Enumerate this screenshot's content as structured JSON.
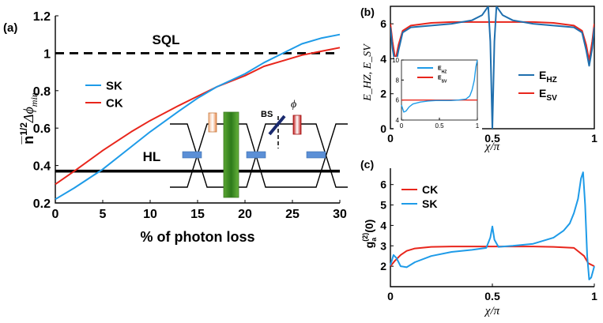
{
  "panel_a": {
    "label": "(a)",
    "ylabel_main": "n̅",
    "ylabel_sup": "1/2",
    "ylabel_tail": "Δϕ",
    "ylabel_sub": "min",
    "sql_label": "SQL",
    "hl_label": "HL",
    "bs_label": "BS",
    "phi_label": "ϕ"
  },
  "panel_b": {
    "label": "(b)"
  },
  "panel_c": {
    "label": "(c)"
  },
  "colors": {
    "blue": "#1e9be8",
    "red": "#e8261c",
    "darkblue": "#1f6fae",
    "black": "#000000"
  },
  "chart_data": [
    {
      "type": "line",
      "panel": "a",
      "xlabel": "% of photon loss",
      "ylabel": "n^{1/2} Δϕ_min",
      "xlim": [
        0,
        30
      ],
      "ylim": [
        0.2,
        1.2
      ],
      "xticks": [
        "0",
        "5",
        "10",
        "15",
        "20",
        "25",
        "30"
      ],
      "yticks": [
        "0.2",
        "0.4",
        "0.6",
        "0.8",
        "1",
        "1.2"
      ],
      "legend": [
        "SK",
        "CK"
      ],
      "legend_position": "left",
      "series": [
        {
          "name": "SK",
          "color": "#1e9be8",
          "x": [
            0,
            2,
            5,
            8,
            10,
            13,
            15,
            17,
            20,
            22,
            24,
            26,
            28,
            30
          ],
          "y": [
            0.22,
            0.28,
            0.38,
            0.5,
            0.58,
            0.69,
            0.76,
            0.82,
            0.89,
            0.95,
            1.0,
            1.05,
            1.08,
            1.1
          ]
        },
        {
          "name": "CK",
          "color": "#e8261c",
          "x": [
            0,
            2,
            5,
            8,
            10,
            13,
            15,
            17,
            20,
            22,
            24,
            26,
            28,
            30
          ],
          "y": [
            0.3,
            0.37,
            0.48,
            0.58,
            0.64,
            0.72,
            0.77,
            0.82,
            0.88,
            0.93,
            0.96,
            0.99,
            1.01,
            1.03
          ]
        },
        {
          "name": "SQL",
          "style": "dashed",
          "x": [
            0,
            30
          ],
          "y": [
            1.0,
            1.0
          ]
        },
        {
          "name": "HL",
          "style": "solid-thick",
          "x": [
            0,
            30
          ],
          "y": [
            0.37,
            0.37
          ]
        }
      ]
    },
    {
      "type": "line",
      "panel": "b",
      "xlabel": "χ/π",
      "ylabel": "E_HZ, E_SV",
      "xlim": [
        0,
        1
      ],
      "ylim": [
        0,
        7
      ],
      "xticks": [
        "0",
        "0.5",
        "1"
      ],
      "yticks": [
        "0",
        "2",
        "4",
        "6"
      ],
      "legend": [
        "E_HZ",
        "E_SV"
      ],
      "legend_position": "right",
      "series": [
        {
          "name": "E_HZ",
          "color": "#1f6fae",
          "x": [
            0,
            0.01,
            0.025,
            0.04,
            0.06,
            0.1,
            0.2,
            0.3,
            0.4,
            0.45,
            0.48,
            0.49,
            0.5,
            0.51,
            0.52,
            0.55,
            0.6,
            0.7,
            0.8,
            0.9,
            0.94,
            0.96,
            0.975,
            0.99,
            1
          ],
          "y": [
            5.8,
            4.6,
            3.6,
            4.5,
            5.5,
            5.8,
            5.9,
            6.0,
            6.2,
            6.5,
            7.0,
            5.0,
            0.0,
            5.0,
            7.0,
            6.5,
            6.2,
            6.0,
            5.9,
            5.8,
            5.5,
            4.5,
            3.6,
            4.6,
            5.8
          ]
        },
        {
          "name": "E_SV",
          "color": "#e8261c",
          "x": [
            0,
            0.01,
            0.025,
            0.04,
            0.06,
            0.1,
            0.2,
            0.3,
            0.5,
            0.7,
            0.8,
            0.9,
            0.94,
            0.96,
            0.975,
            0.99,
            1
          ],
          "y": [
            6.0,
            5.0,
            3.9,
            4.8,
            5.6,
            5.9,
            6.05,
            6.1,
            6.1,
            6.1,
            6.05,
            5.9,
            5.6,
            4.8,
            3.9,
            5.0,
            6.0
          ]
        }
      ],
      "inset": {
        "xlim": [
          0,
          1
        ],
        "ylim": [
          4,
          10
        ],
        "xticks": [
          "0",
          "0.5",
          "1"
        ],
        "yticks": [
          "4",
          "6",
          "8",
          "10"
        ],
        "legend": [
          "E_HZ",
          "E_SV"
        ],
        "series": [
          {
            "name": "E_HZ",
            "color": "#1e9be8",
            "x": [
              0,
              0.03,
              0.06,
              0.1,
              0.15,
              0.25,
              0.35,
              0.45,
              0.55,
              0.65,
              0.75,
              0.85,
              0.9,
              0.93,
              0.96,
              0.98,
              1.0
            ],
            "y": [
              5.5,
              4.8,
              4.9,
              5.3,
              5.6,
              5.8,
              5.9,
              5.95,
              5.95,
              5.95,
              6.0,
              6.1,
              6.4,
              7.0,
              8.0,
              9.3,
              10.0
            ]
          },
          {
            "name": "E_SV",
            "color": "#e8261c",
            "x": [
              0,
              1
            ],
            "y": [
              6.0,
              6.0
            ]
          }
        ]
      }
    },
    {
      "type": "line",
      "panel": "c",
      "xlabel": "χ/π",
      "ylabel": "g_a^(2)(0)",
      "xlim": [
        0,
        1
      ],
      "ylim": [
        1,
        6.8
      ],
      "xticks": [
        "0",
        "0.5",
        "1"
      ],
      "yticks": [
        "2",
        "3",
        "4",
        "5",
        "6"
      ],
      "legend": [
        "CK",
        "SK"
      ],
      "legend_position": "top-left",
      "series": [
        {
          "name": "CK",
          "color": "#e8261c",
          "x": [
            0,
            0.02,
            0.05,
            0.08,
            0.12,
            0.2,
            0.3,
            0.5,
            0.7,
            0.8,
            0.9,
            0.95,
            0.97,
            1.0
          ],
          "y": [
            2.0,
            2.25,
            2.55,
            2.75,
            2.87,
            2.95,
            2.97,
            2.97,
            2.97,
            2.95,
            2.9,
            2.5,
            2.15,
            2.0
          ]
        },
        {
          "name": "SK",
          "color": "#1e9be8",
          "x": [
            0,
            0.015,
            0.03,
            0.05,
            0.08,
            0.12,
            0.2,
            0.3,
            0.4,
            0.47,
            0.49,
            0.5,
            0.51,
            0.53,
            0.6,
            0.7,
            0.8,
            0.85,
            0.88,
            0.9,
            0.92,
            0.935,
            0.945,
            0.955,
            0.965,
            0.975,
            0.985,
            1.0
          ],
          "y": [
            2.05,
            2.55,
            2.4,
            2.0,
            1.95,
            2.2,
            2.5,
            2.7,
            2.8,
            2.9,
            3.4,
            3.95,
            3.3,
            2.95,
            3.0,
            3.1,
            3.4,
            3.75,
            4.1,
            4.6,
            5.3,
            6.3,
            6.6,
            5.0,
            2.5,
            1.35,
            1.45,
            2.0
          ]
        }
      ]
    }
  ]
}
